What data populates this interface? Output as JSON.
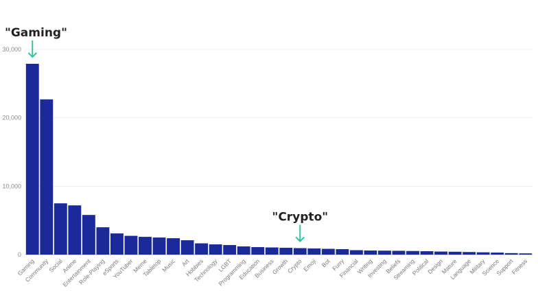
{
  "chart_data": {
    "type": "bar",
    "title": "",
    "xlabel": "",
    "ylabel": "",
    "ylim": [
      0,
      30000
    ],
    "yticks": [
      0,
      10000,
      20000,
      30000
    ],
    "ytick_labels": [
      "0",
      "10,000",
      "20,000",
      "30,000"
    ],
    "grid": true,
    "categories": [
      "Gaming",
      "Community",
      "Social",
      "Anime",
      "Entertainment",
      "Role-Playing",
      "eSports",
      "YouTuber",
      "Meme",
      "Tabletop",
      "Music",
      "Art",
      "Hobbies",
      "Technology",
      "LGBT",
      "Programming",
      "Education",
      "Business",
      "Growth",
      "Crypto",
      "Emoji",
      "Bot",
      "Furry",
      "Financial",
      "Writing",
      "Investing",
      "Beliefs",
      "Streaming",
      "Political",
      "Design",
      "Mature",
      "Language",
      "Military",
      "Science",
      "Support",
      "Fitness"
    ],
    "values": [
      27900,
      22700,
      7500,
      7200,
      5800,
      4000,
      3100,
      2750,
      2600,
      2500,
      2400,
      2100,
      1650,
      1500,
      1400,
      1200,
      1100,
      1050,
      1000,
      950,
      900,
      850,
      800,
      650,
      600,
      580,
      560,
      530,
      500,
      450,
      420,
      380,
      340,
      300,
      220,
      180
    ],
    "bar_color": "#1a2a9a",
    "annotations": [
      {
        "text": "\"Gaming\"",
        "category": "Gaming",
        "arrow_color": "#2ec4a0"
      },
      {
        "text": "\"Crypto\"",
        "category": "Crypto",
        "arrow_color": "#2ec4a0"
      }
    ]
  }
}
